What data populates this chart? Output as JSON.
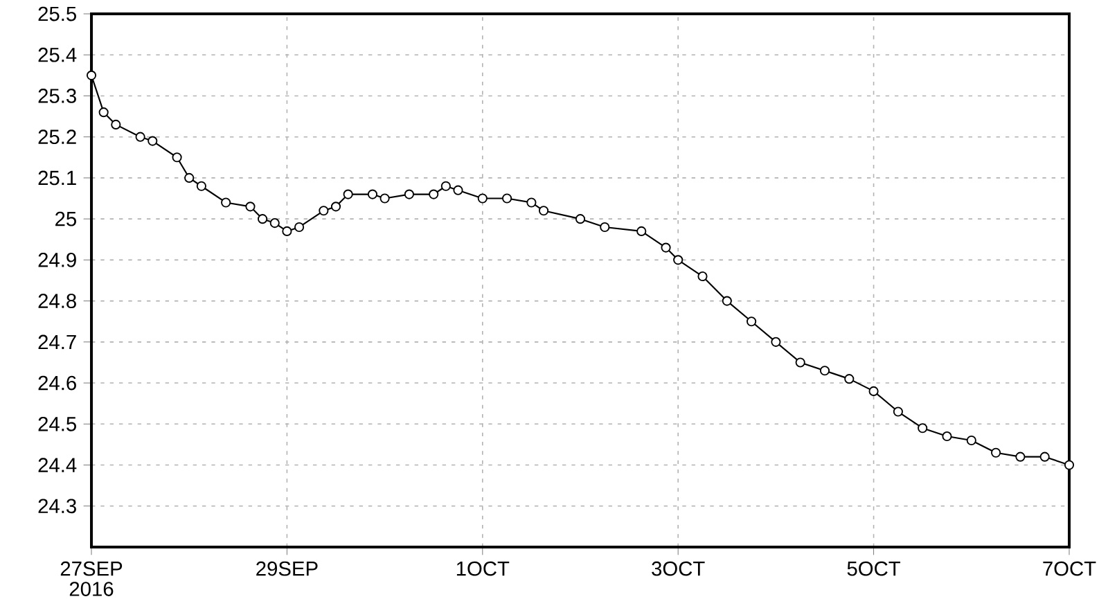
{
  "chart_data": {
    "type": "line",
    "grid": true,
    "marker": "circle",
    "line_style": "solid",
    "xlim": [
      "2016-09-27",
      "2016-10-07"
    ],
    "xticks": [
      {
        "value": "2016-09-27",
        "label": "27SEP 2016"
      },
      {
        "value": "2016-09-29",
        "label": "29SEP"
      },
      {
        "value": "2016-10-01",
        "label": "1OCT"
      },
      {
        "value": "2016-10-03",
        "label": "3OCT"
      },
      {
        "value": "2016-10-05",
        "label": "5OCT"
      },
      {
        "value": "2016-10-07",
        "label": "7OCT"
      }
    ],
    "ylim": [
      24.2,
      25.5
    ],
    "yticks": [
      24.3,
      24.4,
      24.5,
      24.6,
      24.7,
      24.8,
      24.9,
      25,
      25.1,
      25.2,
      25.3,
      25.4,
      25.5
    ],
    "x": [
      "2016-09-27T00:00",
      "2016-09-27T03:00",
      "2016-09-27T06:00",
      "2016-09-27T12:00",
      "2016-09-27T15:00",
      "2016-09-27T21:00",
      "2016-09-28T00:00",
      "2016-09-28T03:00",
      "2016-09-28T09:00",
      "2016-09-28T15:00",
      "2016-09-28T18:00",
      "2016-09-28T21:00",
      "2016-09-29T00:00",
      "2016-09-29T03:00",
      "2016-09-29T09:00",
      "2016-09-29T12:00",
      "2016-09-29T15:00",
      "2016-09-29T21:00",
      "2016-09-30T00:00",
      "2016-09-30T06:00",
      "2016-09-30T12:00",
      "2016-09-30T15:00",
      "2016-09-30T18:00",
      "2016-10-01T00:00",
      "2016-10-01T06:00",
      "2016-10-01T12:00",
      "2016-10-01T15:00",
      "2016-10-02T00:00",
      "2016-10-02T06:00",
      "2016-10-02T15:00",
      "2016-10-02T21:00",
      "2016-10-03T00:00",
      "2016-10-03T06:00",
      "2016-10-03T12:00",
      "2016-10-03T18:00",
      "2016-10-04T00:00",
      "2016-10-04T06:00",
      "2016-10-04T12:00",
      "2016-10-04T18:00",
      "2016-10-05T00:00",
      "2016-10-05T06:00",
      "2016-10-05T12:00",
      "2016-10-05T18:00",
      "2016-10-06T00:00",
      "2016-10-06T06:00",
      "2016-10-06T12:00",
      "2016-10-06T18:00",
      "2016-10-07T00:00"
    ],
    "series": [
      {
        "color": "#000000",
        "values": [
          25.35,
          25.26,
          25.23,
          25.2,
          25.19,
          25.15,
          25.1,
          25.08,
          25.04,
          25.03,
          25.0,
          24.99,
          24.97,
          24.98,
          25.02,
          25.03,
          25.06,
          25.06,
          25.05,
          25.06,
          25.06,
          25.08,
          25.07,
          25.05,
          25.05,
          25.04,
          25.02,
          25.0,
          24.98,
          24.97,
          24.93,
          24.9,
          24.86,
          24.8,
          24.75,
          24.7,
          24.65,
          24.63,
          24.61,
          24.58,
          24.53,
          24.49,
          24.47,
          24.46,
          24.43,
          24.42,
          24.42,
          24.4
        ]
      }
    ]
  }
}
